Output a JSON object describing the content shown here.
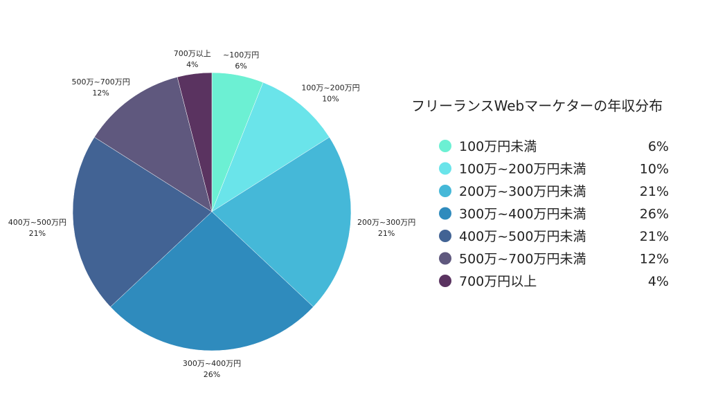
{
  "chart_data": {
    "type": "pie",
    "title": "フリーランスWebマーケターの年収分布",
    "categories": [
      "~100万円",
      "100万~200万円",
      "200万~300万円",
      "300万~400万円",
      "400万~500万円",
      "500万~700万円",
      "700万以上"
    ],
    "values": [
      6,
      10,
      21,
      26,
      21,
      12,
      4
    ],
    "value_labels": [
      "6%",
      "10%",
      "21%",
      "26%",
      "21%",
      "12%",
      "4%"
    ],
    "colors": [
      "#6cf0d3",
      "#6ae4ea",
      "#45b8d8",
      "#2f8bbd",
      "#426394",
      "#5f587e",
      "#5a3360"
    ],
    "legend": {
      "placement": "right",
      "entries": [
        {
          "label": "100万円未満",
          "value": "6%"
        },
        {
          "label": "100万~200万円未満",
          "value": "10%"
        },
        {
          "label": "200万~300万円未満",
          "value": "21%"
        },
        {
          "label": "300万~400万円未満",
          "value": "26%"
        },
        {
          "label": "400万~500万円未満",
          "value": "21%"
        },
        {
          "label": "500万~700万円未満",
          "value": "12%"
        },
        {
          "label": "700万円以上",
          "value": "4%"
        }
      ]
    }
  }
}
